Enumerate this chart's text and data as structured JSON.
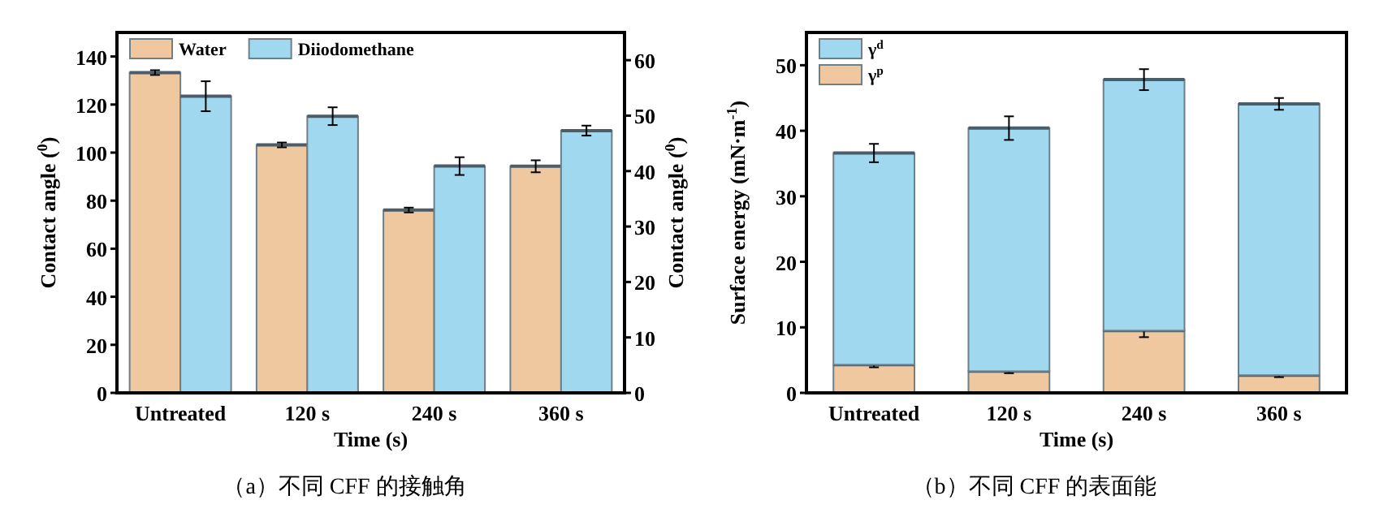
{
  "chart_data": [
    {
      "type": "bar",
      "xlabel": "Time (s)",
      "ylabel": "Contact angle ($^{0}$)",
      "y2label": "Contact angle ($^{0}$)",
      "categories": [
        "Untreated",
        "120 s",
        "240 s",
        "360 s"
      ],
      "series": [
        {
          "name": "Water",
          "color": "#efc8a0",
          "values": [
            133.3,
            103.2,
            76.1,
            94.3
          ],
          "errors": [
            1,
            1,
            1,
            2.5
          ]
        },
        {
          "name": "Diiodomethane",
          "color": "#a0d8f0",
          "axis": "y2",
          "values": [
            53.5,
            49.9,
            40.9,
            47.3
          ],
          "errors": [
            2.7,
            1.6,
            1.6,
            0.9
          ]
        }
      ],
      "ylim": [
        0,
        150
      ],
      "yticks": [
        0,
        20,
        40,
        60,
        80,
        100,
        120,
        140
      ],
      "y2lim": [
        0,
        65
      ],
      "y2ticks": [
        0,
        10,
        20,
        30,
        40,
        50,
        60
      ],
      "legend": "top",
      "annotations": [
        "（a）不同 CFF 的接触角"
      ]
    },
    {
      "type": "bar",
      "stacked": true,
      "xlabel": "Time (s)",
      "ylabel": "Surface energy (mN·m$^{-1}$)",
      "categories": [
        "Untreated",
        "120 s",
        "240 s",
        "360 s"
      ],
      "series": [
        {
          "name": "γ$^{p}$",
          "color": "#efc8a0",
          "values": [
            4.3,
            3.3,
            9.5,
            2.7
          ],
          "errors": [
            0.4,
            0.3,
            1,
            0.3
          ]
        },
        {
          "name": "γ$^{d}$",
          "color": "#a0d8f0",
          "values": [
            32.3,
            37.1,
            38.3,
            41.4
          ],
          "errors": [
            1.4,
            1.8,
            1.6,
            0.9
          ]
        }
      ],
      "ylim": [
        0,
        55
      ],
      "yticks": [
        0,
        10,
        20,
        30,
        40,
        50
      ],
      "legend": "top left",
      "annotations": [
        "（b）不同 CFF 的表面能"
      ]
    }
  ]
}
